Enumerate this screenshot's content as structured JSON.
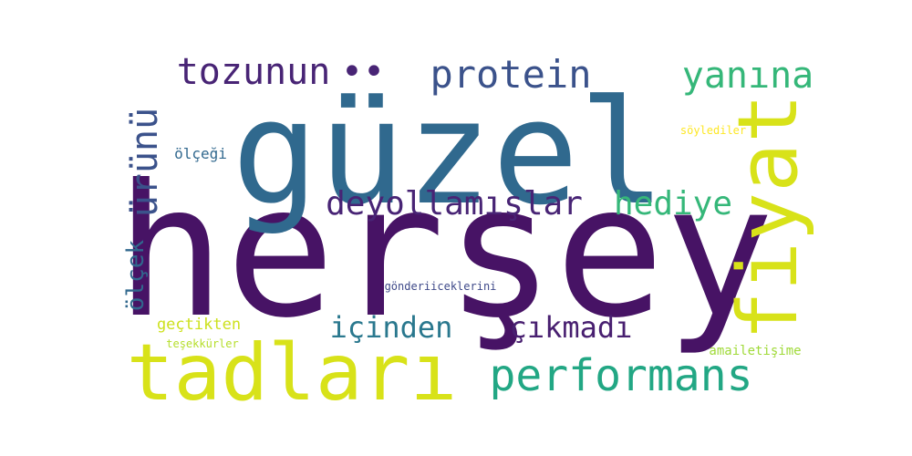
{
  "words": [
    {
      "text": "herşey",
      "color": "#471365"
    },
    {
      "text": "güzel",
      "color": "#30698e"
    },
    {
      "text": "tadları",
      "color": "#d8e219"
    },
    {
      "text": "fiyat",
      "color": "#d8e219"
    },
    {
      "text": "performans",
      "color": "#22a784"
    },
    {
      "text": "protein",
      "color": "#3b528b"
    },
    {
      "text": "tozunun",
      "color": "#482475"
    },
    {
      "text": "yanına",
      "color": "#35b779"
    },
    {
      "text": "deyollamışlar",
      "color": "#482475"
    },
    {
      "text": "hediye",
      "color": "#35b779"
    },
    {
      "text": "ürünü",
      "color": "#3b528b"
    },
    {
      "text": "ölçek",
      "color": "#31688e"
    },
    {
      "text": "içinden",
      "color": "#2a788e"
    },
    {
      "text": "çıkmadı",
      "color": "#481f70"
    },
    {
      "text": "ölçeği",
      "color": "#31688e"
    },
    {
      "text": "gönderiiceklerini",
      "color": "#3e4989"
    },
    {
      "text": "geçtikten",
      "color": "#cde11d"
    },
    {
      "text": "teşekkürler",
      "color": "#b5de2b"
    },
    {
      "text": "amailetişime",
      "color": "#a0da39"
    },
    {
      "text": "söylediler",
      "color": "#fde725"
    },
    {
      "text": "••",
      "color": "#482475"
    }
  ]
}
